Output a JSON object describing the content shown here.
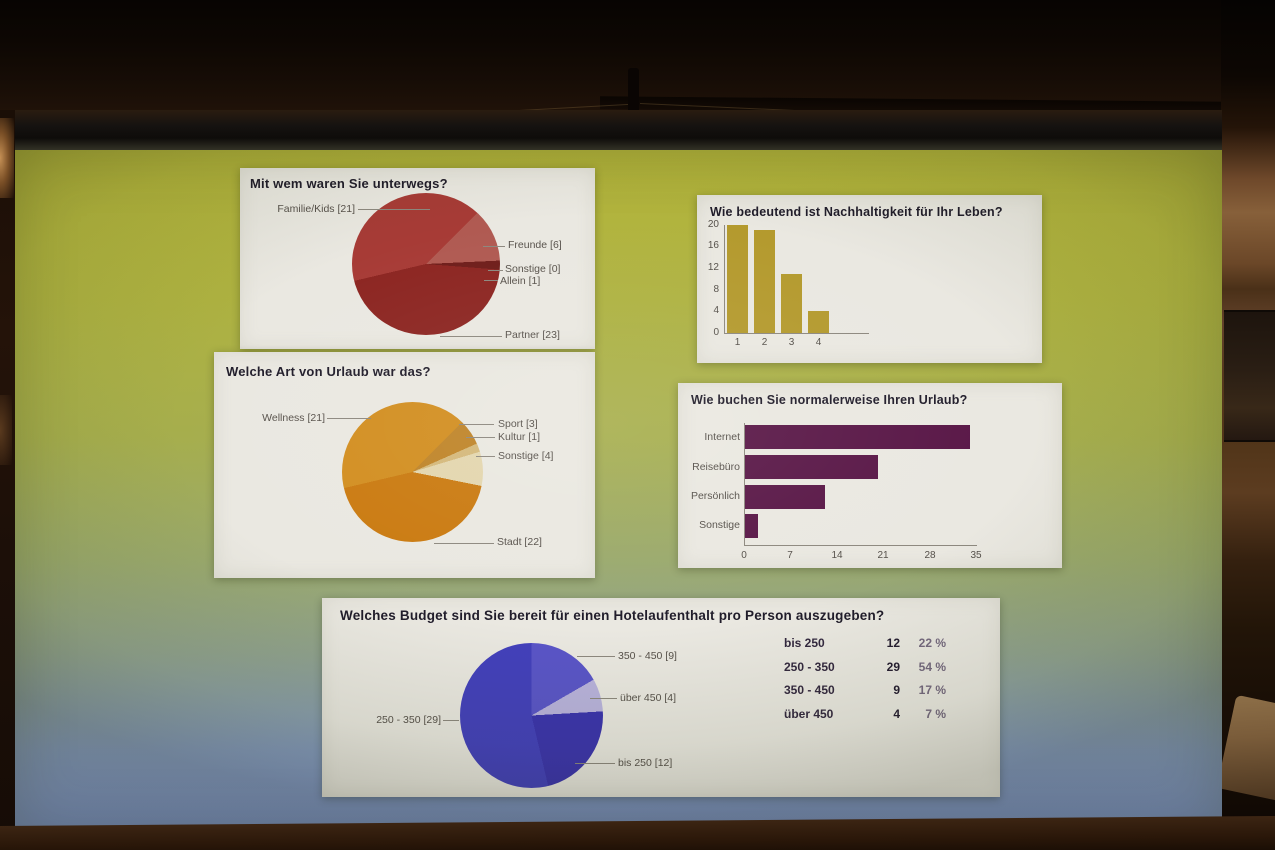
{
  "scene": {
    "screen_top_color": "#b4b53b",
    "screen_bottom_color": "#7b92cb",
    "panel_background": "#eae8e1",
    "room_dark_color": "#150c05"
  },
  "chart_data": [
    {
      "type": "pie",
      "title": "Mit wem waren Sie unterwegs?",
      "total": 51,
      "from_deg": 45,
      "draw_order": [
        1,
        2,
        3,
        4,
        0
      ],
      "slices": [
        {
          "label": "Familie/Kids",
          "value": 21,
          "display": "Familie/Kids [21]",
          "color": "#a73b36"
        },
        {
          "label": "Freunde",
          "value": 6,
          "display": "Freunde [6]",
          "color": "#b05a52"
        },
        {
          "label": "Sonstige",
          "value": 0,
          "display": "Sonstige [0]",
          "color": "#b87a6e"
        },
        {
          "label": "Allein",
          "value": 1,
          "display": "Allein [1]",
          "color": "#6f1d1a"
        },
        {
          "label": "Partner",
          "value": 23,
          "display": "Partner [23]",
          "color": "#8c2521"
        }
      ]
    },
    {
      "type": "bar",
      "title": "Wie bedeutend ist Nachhaltigkeit für Ihr Leben?",
      "categories": [
        "1",
        "2",
        "3",
        "4"
      ],
      "values": [
        20,
        19,
        11,
        4
      ],
      "ylim": [
        0,
        20
      ],
      "yticks": [
        "20",
        "16",
        "12",
        "8",
        "4",
        "0"
      ],
      "bar_color": "#b49a2e",
      "grid": false,
      "legend": "none"
    },
    {
      "type": "pie",
      "title": "Welche Art von Urlaub war das?",
      "total": 51,
      "from_deg": 45,
      "draw_order": [
        1,
        2,
        3,
        4,
        0
      ],
      "slices": [
        {
          "label": "Wellness",
          "value": 21,
          "display": "Wellness [21]",
          "color": "#d28e20"
        },
        {
          "label": "Sport",
          "value": 3,
          "display": "Sport [3]",
          "color": "#bf8428"
        },
        {
          "label": "Kultur",
          "value": 1,
          "display": "Kultur [1]",
          "color": "#d4b87a"
        },
        {
          "label": "Sonstige",
          "value": 4,
          "display": "Sonstige [4]",
          "color": "#e3d6ae"
        },
        {
          "label": "Stadt",
          "value": 22,
          "display": "Stadt [22]",
          "color": "#ca7a10"
        }
      ]
    },
    {
      "type": "hbar",
      "title": "Wie buchen Sie normalerweise Ihren Urlaub?",
      "categories": [
        "Internet",
        "Reisebüro",
        "Persönlich",
        "Sonstige"
      ],
      "values": [
        34,
        20,
        12,
        2
      ],
      "xlim": [
        0,
        35
      ],
      "xticks": [
        "0",
        "7",
        "14",
        "21",
        "28",
        "35"
      ],
      "bar_color": "#591747",
      "grid": false,
      "legend": "none"
    },
    {
      "type": "pie",
      "title": "Welches Budget sind Sie bereit für einen Hotelaufenthalt pro Person auszugeben?",
      "total": 54,
      "from_deg": 0,
      "draw_order": [
        2,
        3,
        0,
        1
      ],
      "slices": [
        {
          "label": "bis 250",
          "value": 12,
          "display": "bis 250 [12]",
          "color": "#3b33ae"
        },
        {
          "label": "250 - 350",
          "value": 29,
          "display": "250 - 350 [29]",
          "color": "#4340bc"
        },
        {
          "label": "350 - 450",
          "value": 9,
          "display": "350 - 450 [9]",
          "color": "#5a55c8"
        },
        {
          "label": "über 450",
          "value": 4,
          "display": "über 450 [4]",
          "color": "#b9b3dd"
        }
      ],
      "table": {
        "rows": [
          {
            "label": "bis 250",
            "count": "12",
            "pct": "22 %"
          },
          {
            "label": "250 - 350",
            "count": "29",
            "pct": "54 %"
          },
          {
            "label": "350 - 450",
            "count": "9",
            "pct": "17 %"
          },
          {
            "label": "über 450",
            "count": "4",
            "pct": "7 %"
          }
        ]
      }
    }
  ]
}
